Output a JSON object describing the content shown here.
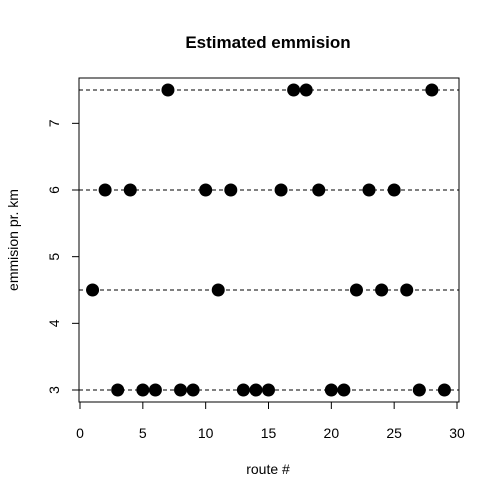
{
  "chart_data": {
    "type": "scatter",
    "title": "Estimated emmision",
    "xlabel": "route #",
    "ylabel": "emmision pr. km",
    "xlim": [
      0,
      30
    ],
    "ylim": [
      3,
      7.5
    ],
    "xticks": [
      0,
      5,
      10,
      15,
      20,
      25,
      30
    ],
    "yticks": [
      3,
      4,
      5,
      6,
      7
    ],
    "reference_lines_y": [
      3,
      4.5,
      6,
      7.5
    ],
    "grid": false,
    "point_color": "#000000",
    "x": [
      1,
      2,
      3,
      4,
      5,
      6,
      7,
      8,
      9,
      10,
      11,
      12,
      13,
      14,
      15,
      16,
      17,
      18,
      19,
      20,
      21,
      22,
      23,
      24,
      25,
      26,
      27,
      28,
      29
    ],
    "y": [
      4.5,
      6,
      3,
      6,
      3,
      3,
      7.5,
      3,
      3,
      6,
      4.5,
      6,
      3,
      3,
      3,
      6,
      7.5,
      7.5,
      6,
      3,
      3,
      4.5,
      6,
      4.5,
      6,
      4.5,
      3,
      7.5,
      3
    ]
  }
}
